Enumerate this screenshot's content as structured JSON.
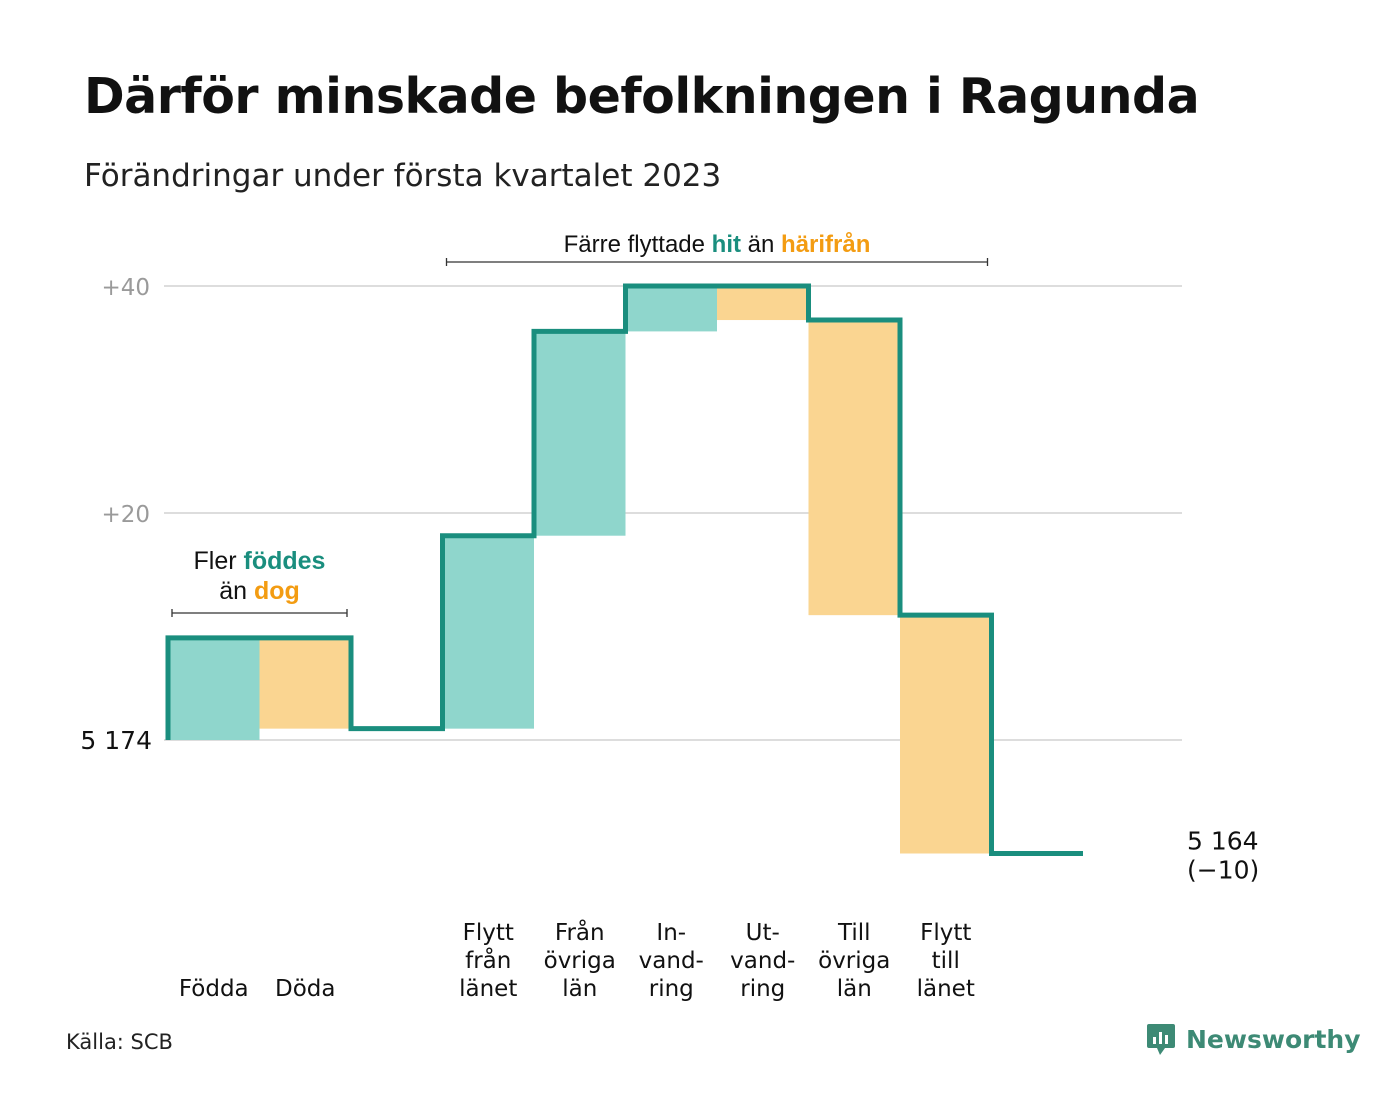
{
  "title": "Därför minskade befolkningen i Ragunda",
  "subtitle": "Förändringar under första kvartalet 2023",
  "source": "Källa: SCB",
  "brand": "Newsworthy",
  "colors": {
    "increase": "#8fd6cc",
    "decrease": "#fad591",
    "line": "#1a8e7e",
    "accent_teal": "#1a8e7e",
    "accent_orange": "#f39c12",
    "grid": "#dddddd",
    "tick": "#9a9a9a",
    "brand": "#3d8a75"
  },
  "chart_data": {
    "type": "waterfall",
    "title": "Därför minskade befolkningen i Ragunda",
    "subtitle": "Förändringar under första kvartalet 2023",
    "baseline": 5174,
    "baseline_label": "5 174",
    "end_value": 5164,
    "end_label": "5 164",
    "change_label": "(−10)",
    "ylim": [
      -10,
      40
    ],
    "yticks": [
      {
        "value": 20,
        "label": "+20"
      },
      {
        "value": 40,
        "label": "+40"
      }
    ],
    "grid": true,
    "steps": [
      {
        "label": [
          "Födda"
        ],
        "delta": 9,
        "kind": "increase"
      },
      {
        "label": [
          "Döda"
        ],
        "delta": -8,
        "kind": "decrease"
      },
      {
        "label": [],
        "delta": 0,
        "kind": "gap"
      },
      {
        "label": [
          "Flytt",
          "från",
          "länet"
        ],
        "delta": 17,
        "kind": "increase"
      },
      {
        "label": [
          "Från",
          "övriga",
          "län"
        ],
        "delta": 18,
        "kind": "increase"
      },
      {
        "label": [
          "In-",
          "vand-",
          "ring"
        ],
        "delta": 4,
        "kind": "increase"
      },
      {
        "label": [
          "Ut-",
          "vand-",
          "ring"
        ],
        "delta": -3,
        "kind": "decrease"
      },
      {
        "label": [
          "Till",
          "övriga",
          "län"
        ],
        "delta": -26,
        "kind": "decrease"
      },
      {
        "label": [
          "Flytt",
          "till",
          "länet"
        ],
        "delta": -21,
        "kind": "decrease"
      },
      {
        "label": [],
        "delta": 0,
        "kind": "gap"
      }
    ],
    "annotations": [
      {
        "id": "births",
        "line1": [
          {
            "text": "Fler ",
            "style": "plain"
          },
          {
            "text": "föddes",
            "style": "teal"
          }
        ],
        "line2": [
          {
            "text": "än ",
            "style": "plain"
          },
          {
            "text": "dog",
            "style": "orange"
          }
        ],
        "span": [
          0,
          1
        ]
      },
      {
        "id": "migration",
        "line1": [
          {
            "text": "Färre flyttade ",
            "style": "plain"
          },
          {
            "text": "hit",
            "style": "teal"
          },
          {
            "text": " än ",
            "style": "plain"
          },
          {
            "text": "härifrån",
            "style": "orange"
          }
        ],
        "line2": [],
        "span": [
          3,
          8
        ]
      }
    ]
  }
}
